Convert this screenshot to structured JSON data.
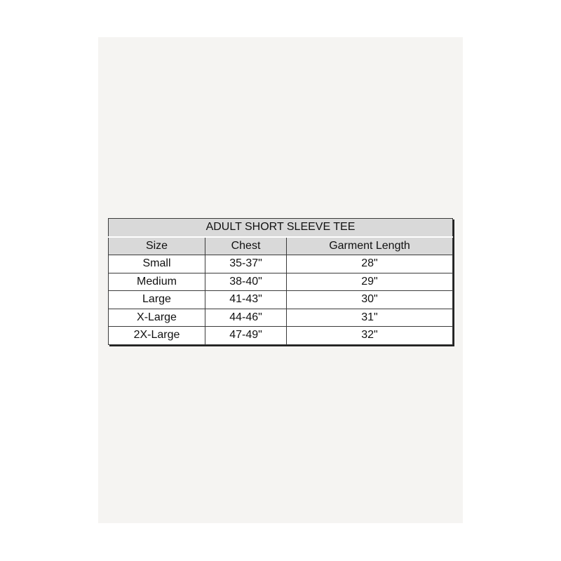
{
  "table": {
    "title": "ADULT SHORT SLEEVE TEE",
    "headers": [
      "Size",
      "Chest",
      "Garment Length"
    ],
    "rows": [
      [
        "Small",
        "35-37\"",
        "28\""
      ],
      [
        "Medium",
        "38-40\"",
        "29\""
      ],
      [
        "Large",
        "41-43\"",
        "30\""
      ],
      [
        "X-Large",
        "44-46\"",
        "31\""
      ],
      [
        "2X-Large",
        "47-49\"",
        "32\""
      ]
    ]
  }
}
